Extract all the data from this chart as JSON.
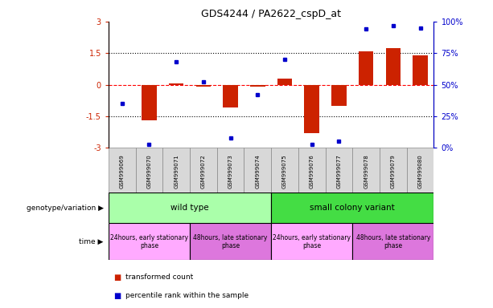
{
  "title": "GDS4244 / PA2622_cspD_at",
  "samples": [
    "GSM999069",
    "GSM999070",
    "GSM999071",
    "GSM999072",
    "GSM999073",
    "GSM999074",
    "GSM999075",
    "GSM999076",
    "GSM999077",
    "GSM999078",
    "GSM999079",
    "GSM999080"
  ],
  "transformed_count": [
    0.0,
    -1.7,
    0.05,
    -0.1,
    -1.1,
    -0.1,
    0.3,
    -2.3,
    -1.0,
    1.6,
    1.75,
    1.4
  ],
  "percentile_rank": [
    35,
    3,
    68,
    52,
    8,
    42,
    70,
    3,
    5,
    94,
    97,
    95
  ],
  "bar_color": "#cc2200",
  "dot_color": "#0000cc",
  "ylim_left": [
    -3,
    3
  ],
  "ylim_right": [
    0,
    100
  ],
  "yticks_left": [
    -3,
    -1.5,
    0,
    1.5,
    3
  ],
  "ytick_labels_left": [
    "-3",
    "-1.5",
    "0",
    "1.5",
    "3"
  ],
  "yticks_right": [
    0,
    25,
    50,
    75,
    100
  ],
  "ytick_labels_right": [
    "0%",
    "25%",
    "50%",
    "75%",
    "100%"
  ],
  "hlines": [
    -1.5,
    0,
    1.5
  ],
  "hline_colors": [
    "black",
    "red",
    "black"
  ],
  "hline_styles": [
    "dotted",
    "dashed",
    "dotted"
  ],
  "genotype_groups": [
    {
      "label": "wild type",
      "start": 0,
      "end": 5,
      "color": "#aaffaa"
    },
    {
      "label": "small colony variant",
      "start": 6,
      "end": 11,
      "color": "#44dd44"
    }
  ],
  "time_groups": [
    {
      "label": "24hours, early stationary\nphase",
      "start": 0,
      "end": 2,
      "color": "#ffaaff"
    },
    {
      "label": "48hours, late stationary\nphase",
      "start": 3,
      "end": 5,
      "color": "#dd77dd"
    },
    {
      "label": "24hours, early stationary\nphase",
      "start": 6,
      "end": 8,
      "color": "#ffaaff"
    },
    {
      "label": "48hours, late stationary\nphase",
      "start": 9,
      "end": 11,
      "color": "#dd77dd"
    }
  ],
  "legend_bar_label": "transformed count",
  "legend_dot_label": "percentile rank within the sample",
  "left_label_color": "#cc2200",
  "right_label_color": "#0000cc",
  "gsm_bg_color": "#d8d8d8",
  "gsm_edge_color": "#888888"
}
